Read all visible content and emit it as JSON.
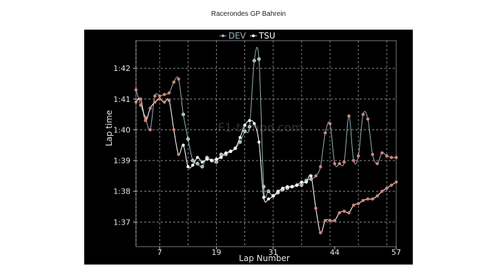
{
  "title": "Racerondes GP Bahrein",
  "watermark": "F1-tempo.com",
  "colors": {
    "DEV": "#d4837a",
    "TSU": "#ffffff",
    "dev_line": "#9ab7bc",
    "background": "#000000"
  },
  "chart_data": {
    "type": "line",
    "title": "Racerondes GP Bahrein",
    "xlabel": "Lap Number",
    "ylabel": "Lap time",
    "x_ticks": [
      7,
      19,
      31,
      44,
      57
    ],
    "y_ticks": [
      {
        "value": 97,
        "label": "1:37"
      },
      {
        "value": 98,
        "label": "1:38"
      },
      {
        "value": 99,
        "label": "1:39"
      },
      {
        "value": 100,
        "label": "1:40"
      },
      {
        "value": 101,
        "label": "1:41"
      },
      {
        "value": 102,
        "label": "1:42"
      }
    ],
    "xlim": [
      2,
      57
    ],
    "ylim": [
      96.2,
      102.9
    ],
    "grid": true,
    "legend": "top-center",
    "series": [
      {
        "name": "DEV",
        "x": [
          2,
          3,
          4,
          5,
          6,
          7,
          8,
          9,
          10,
          11,
          12,
          13,
          14,
          15,
          16,
          17,
          18,
          19,
          20,
          21,
          22,
          23,
          24,
          25,
          26,
          27,
          28,
          29,
          30,
          31,
          32,
          33,
          34,
          35,
          36,
          37,
          38,
          39,
          40,
          41,
          42,
          43,
          44,
          45,
          46,
          47,
          48,
          49,
          50,
          51,
          52,
          53,
          54,
          55,
          56,
          57
        ],
        "y": [
          101.3,
          100.8,
          100.4,
          100.0,
          101.1,
          101.1,
          101.15,
          101.2,
          101.55,
          101.65,
          100.5,
          99.7,
          99.0,
          98.9,
          98.8,
          99.1,
          99.0,
          98.95,
          99.2,
          99.2,
          99.3,
          99.4,
          99.6,
          99.95,
          100.1,
          102.25,
          102.3,
          98.15,
          98.0,
          97.85,
          97.95,
          98.05,
          98.1,
          98.15,
          98.2,
          98.2,
          98.35,
          98.4,
          98.5,
          98.8,
          99.9,
          100.2,
          98.9,
          98.9,
          98.95,
          100.45,
          99.0,
          99.15,
          100.5,
          100.35,
          99.2,
          98.9,
          99.25,
          99.15,
          99.1,
          99.1
        ],
        "highlighted_x": [
          2,
          3,
          4,
          5,
          6,
          7,
          8,
          9,
          10,
          11,
          40,
          41,
          42,
          43,
          44,
          45,
          46,
          47,
          48,
          49,
          50,
          51,
          52,
          53,
          54,
          55,
          56,
          57
        ]
      },
      {
        "name": "TSU",
        "x": [
          2,
          3,
          4,
          5,
          6,
          7,
          8,
          9,
          10,
          11,
          12,
          13,
          14,
          15,
          16,
          17,
          18,
          19,
          20,
          21,
          22,
          23,
          24,
          25,
          26,
          27,
          28,
          29,
          30,
          31,
          32,
          33,
          34,
          35,
          36,
          37,
          38,
          39,
          40,
          41,
          42,
          43,
          44,
          45,
          46,
          47,
          48,
          49,
          50,
          51,
          52,
          53,
          54,
          55,
          56,
          57
        ],
        "y": [
          100.9,
          101.0,
          100.3,
          100.7,
          100.9,
          101.0,
          100.9,
          100.95,
          100.0,
          99.2,
          99.5,
          98.8,
          98.85,
          99.1,
          98.95,
          99.05,
          99.0,
          99.05,
          99.1,
          99.25,
          99.3,
          99.4,
          99.75,
          100.15,
          100.3,
          100.2,
          99.6,
          97.8,
          97.75,
          97.85,
          98.0,
          98.1,
          98.15,
          98.15,
          98.2,
          98.3,
          98.3,
          98.5,
          97.45,
          96.65,
          97.05,
          97.05,
          97.05,
          97.3,
          97.35,
          97.3,
          97.55,
          97.6,
          97.7,
          97.75,
          97.75,
          97.85,
          98.0,
          98.1,
          98.2,
          98.3
        ]
      }
    ]
  }
}
